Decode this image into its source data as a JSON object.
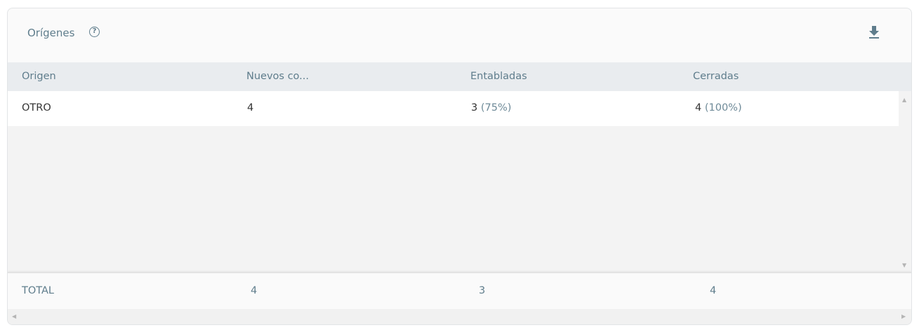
{
  "card": {
    "title": "Orígenes",
    "help_icon": "question-circle-icon",
    "download_icon": "download-icon"
  },
  "table": {
    "columns": [
      "Origen",
      "Nuevos co...",
      "Entabladas",
      "Cerradas"
    ],
    "rows": [
      {
        "origen": "OTRO",
        "nuevos": "4",
        "entabladas": "3",
        "entabladas_pct": "(75%)",
        "cerradas": "4",
        "cerradas_pct": "(100%)"
      }
    ],
    "totals": {
      "label": "TOTAL",
      "nuevos": "4",
      "entabladas": "3",
      "cerradas": "4"
    }
  },
  "colors": {
    "accent": "#5f7d8c",
    "header_bg": "#e9ecef"
  }
}
